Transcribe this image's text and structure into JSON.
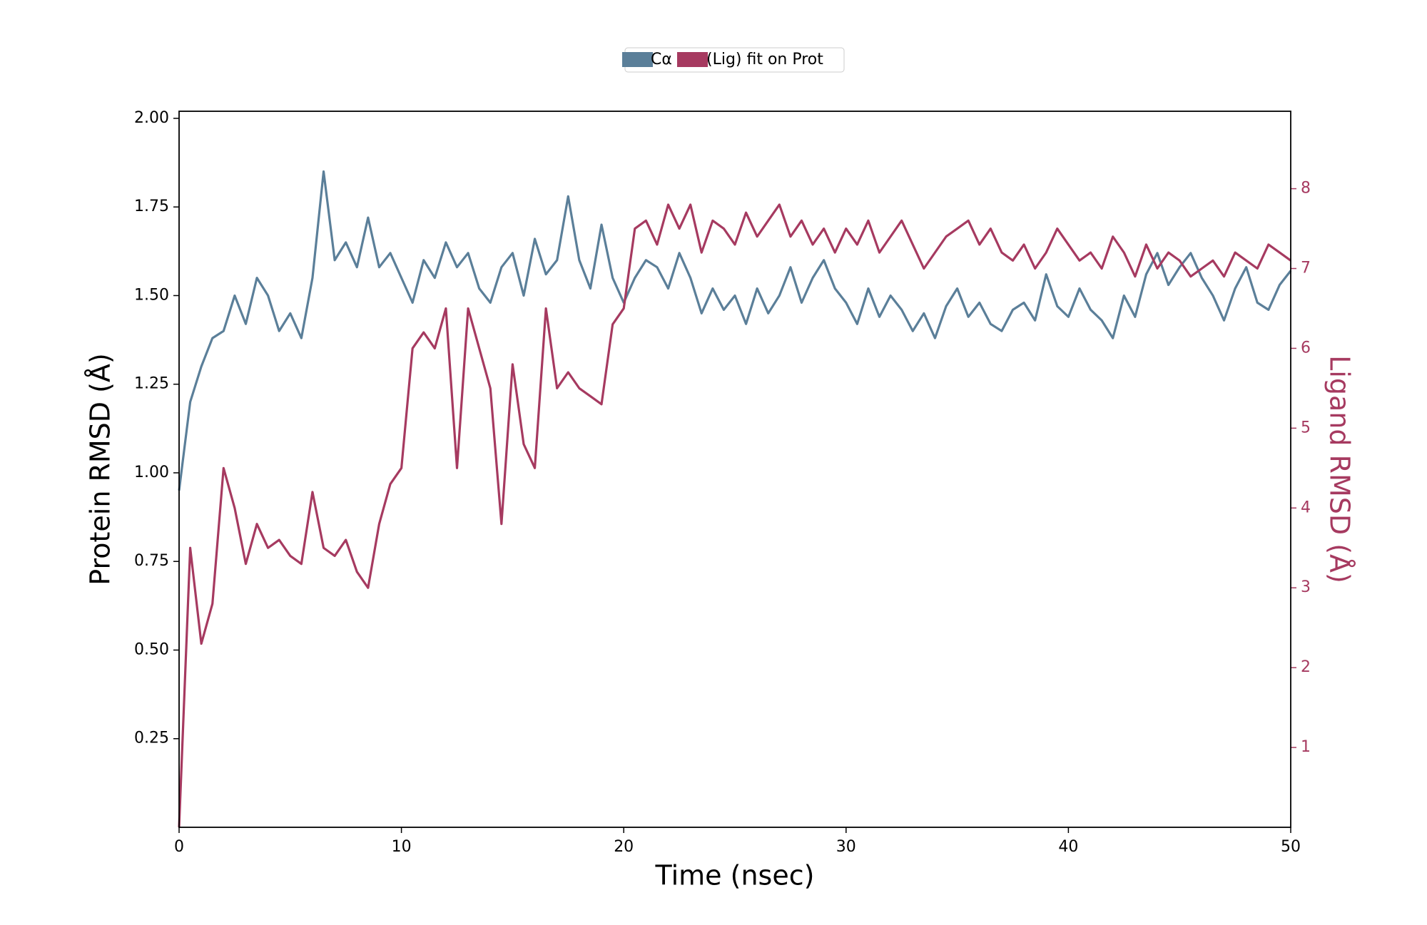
{
  "chart_data": {
    "type": "line",
    "xlabel": "Time (nsec)",
    "ylabel": "Protein RMSD (Å)",
    "y2label": "Ligand RMSD (Å)",
    "xlim": [
      0,
      50
    ],
    "xticks": [
      0,
      10,
      20,
      30,
      40,
      50
    ],
    "ylim": [
      0,
      2.02
    ],
    "yticks": [
      0.25,
      {
        "value": 0.5,
        "label": "0.50"
      },
      0.75,
      {
        "value": 1.0,
        "label": "1.00"
      },
      1.25,
      {
        "value": 1.5,
        "label": "1.50"
      },
      1.75,
      {
        "value": 2.0,
        "label": "2.00"
      }
    ],
    "y2lim": [
      0,
      8.97
    ],
    "y2ticks": [
      1,
      2,
      3,
      4,
      5,
      6,
      7,
      8
    ],
    "y2color": "#a63a60",
    "legend": "upper center",
    "x": [
      0,
      0.5,
      1,
      1.5,
      2,
      2.5,
      3,
      3.5,
      4,
      4.5,
      5,
      5.5,
      6,
      6.5,
      7,
      7.5,
      8,
      8.5,
      9,
      9.5,
      10,
      10.5,
      11,
      11.5,
      12,
      12.5,
      13,
      13.5,
      14,
      14.5,
      15,
      15.5,
      16,
      16.5,
      17,
      17.5,
      18,
      18.5,
      19,
      19.5,
      20,
      20.5,
      21,
      21.5,
      22,
      22.5,
      23,
      23.5,
      24,
      24.5,
      25,
      25.5,
      26,
      26.5,
      27,
      27.5,
      28,
      28.5,
      29,
      29.5,
      30,
      30.5,
      31,
      31.5,
      32,
      32.5,
      33,
      33.5,
      34,
      34.5,
      35,
      35.5,
      36,
      36.5,
      37,
      37.5,
      38,
      38.5,
      39,
      39.5,
      40,
      40.5,
      41,
      41.5,
      42,
      42.5,
      43,
      43.5,
      44,
      44.5,
      45,
      45.5,
      46,
      46.5,
      47,
      47.5,
      48,
      48.5,
      49,
      49.5,
      50
    ],
    "series": [
      {
        "name": "Cα",
        "color": "#5b7f99",
        "values": [
          0.95,
          1.2,
          1.3,
          1.38,
          1.4,
          1.5,
          1.42,
          1.55,
          1.5,
          1.4,
          1.45,
          1.38,
          1.55,
          1.85,
          1.6,
          1.65,
          1.58,
          1.72,
          1.58,
          1.62,
          1.55,
          1.48,
          1.6,
          1.55,
          1.65,
          1.58,
          1.62,
          1.52,
          1.48,
          1.58,
          1.62,
          1.5,
          1.66,
          1.56,
          1.6,
          1.78,
          1.6,
          1.52,
          1.7,
          1.55,
          1.48,
          1.55,
          1.6,
          1.58,
          1.52,
          1.62,
          1.55,
          1.45,
          1.52,
          1.46,
          1.5,
          1.42,
          1.52,
          1.45,
          1.5,
          1.58,
          1.48,
          1.55,
          1.6,
          1.52,
          1.48,
          1.42,
          1.52,
          1.44,
          1.5,
          1.46,
          1.4,
          1.45,
          1.38,
          1.47,
          1.52,
          1.44,
          1.48,
          1.42,
          1.4,
          1.46,
          1.48,
          1.43,
          1.56,
          1.47,
          1.44,
          1.52,
          1.46,
          1.43,
          1.38,
          1.5,
          1.44,
          1.56,
          1.62,
          1.53,
          1.58,
          1.62,
          1.55,
          1.5,
          1.43,
          1.52,
          1.58,
          1.48,
          1.46,
          1.53,
          1.57
        ]
      },
      {
        "name": "(Lig) fit on Prot",
        "color": "#a63a60",
        "axis": "y2",
        "values": [
          0,
          3.5,
          2.3,
          2.8,
          4.5,
          4.0,
          3.3,
          3.8,
          3.5,
          3.6,
          3.4,
          3.3,
          4.2,
          3.5,
          3.4,
          3.6,
          3.2,
          3.0,
          3.8,
          4.3,
          4.5,
          6.0,
          6.2,
          6.0,
          6.5,
          4.5,
          6.5,
          6.0,
          5.5,
          3.8,
          5.8,
          4.8,
          4.5,
          6.5,
          5.5,
          5.7,
          5.5,
          5.4,
          5.3,
          6.3,
          6.5,
          7.5,
          7.6,
          7.3,
          7.8,
          7.5,
          7.8,
          7.2,
          7.6,
          7.5,
          7.3,
          7.7,
          7.4,
          7.6,
          7.8,
          7.4,
          7.6,
          7.3,
          7.5,
          7.2,
          7.5,
          7.3,
          7.6,
          7.2,
          7.4,
          7.6,
          7.3,
          7.0,
          7.2,
          7.4,
          7.5,
          7.6,
          7.3,
          7.5,
          7.2,
          7.1,
          7.3,
          7.0,
          7.2,
          7.5,
          7.3,
          7.1,
          7.2,
          7.0,
          7.4,
          7.2,
          6.9,
          7.3,
          7.0,
          7.2,
          7.1,
          6.9,
          7.0,
          7.1,
          6.9,
          7.2,
          7.1,
          7.0,
          7.3,
          7.2,
          7.1
        ]
      }
    ]
  }
}
